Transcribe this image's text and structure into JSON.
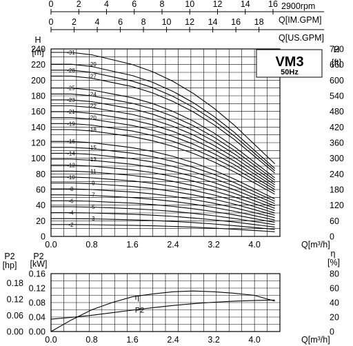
{
  "chart_data": [
    {
      "type": "line",
      "title": "VM3",
      "subtitle": "50Hz",
      "speed_label": "2900rpm",
      "x_units": {
        "m3h": "Q[m³/h]",
        "us": "Q[US.GPM]",
        "imp": "Q[IM.GPM]"
      },
      "y_units": {
        "left_name": "H",
        "left_unit": "[m]",
        "right_name": "H",
        "right_unit": "[ft]"
      },
      "xlim": [
        0,
        4.5
      ],
      "ylim": [
        0,
        240
      ],
      "x_ticks": [
        "0.0",
        "0.8",
        "1.6",
        "2.4",
        "3.2",
        "4.0"
      ],
      "y_ticks": [
        "0",
        "20",
        "40",
        "60",
        "80",
        "100",
        "120",
        "140",
        "160",
        "180",
        "200",
        "220",
        "240"
      ],
      "ft_ticks": [
        "0",
        "60",
        "120",
        "180",
        "240",
        "300",
        "360",
        "420",
        "480",
        "540",
        "600",
        "660",
        "720"
      ],
      "us_ticks": [
        "0",
        "2",
        "4",
        "6",
        "8",
        "10",
        "12",
        "14",
        "16",
        "18"
      ],
      "imp_ticks": [
        "0",
        "2",
        "4",
        "6",
        "8",
        "10",
        "12",
        "14",
        "16"
      ],
      "stages": [
        "2",
        "3",
        "4",
        "5",
        "6",
        "7",
        "8",
        "9",
        "10",
        "11",
        "12",
        "13",
        "14",
        "15",
        "16",
        "18",
        "19",
        "20",
        "21",
        "22",
        "23",
        "24",
        "25",
        "27",
        "28",
        "29",
        "31"
      ],
      "head_per_stage_m": [
        7.6,
        7.6,
        7.5,
        7.3,
        7.1,
        6.8,
        6.4,
        5.9,
        5.3,
        4.6,
        3.8,
        3.0
      ],
      "x": [
        0.0,
        0.4,
        0.8,
        1.2,
        1.6,
        2.0,
        2.4,
        2.8,
        3.2,
        3.6,
        4.0,
        4.4
      ]
    },
    {
      "type": "line",
      "xlim": [
        0,
        4.5
      ],
      "ylim": [
        0,
        0.16
      ],
      "units": {
        "p2_left_name": "P2",
        "p2_left_unit": "[hp]",
        "p2_name": "P2",
        "p2_unit": "[kW]",
        "eta_name": "η",
        "eta_unit": "[%]",
        "x": "Q[m³/h]"
      },
      "x_ticks": [
        "0.0",
        "0.8",
        "1.6",
        "2.4",
        "3.2",
        "4.0"
      ],
      "kw_ticks": [
        "0.00",
        "0.04",
        "0.08",
        "0.12",
        "0.16"
      ],
      "hp_ticks": [
        "0.00",
        "0.06",
        "0.12",
        "0.18"
      ],
      "eta_ticks": [
        "0",
        "20",
        "40",
        "60",
        "80"
      ],
      "series": [
        {
          "name": "η",
          "x": [
            0.0,
            0.4,
            0.8,
            1.2,
            1.6,
            2.0,
            2.4,
            2.8,
            3.2,
            3.6,
            4.0,
            4.4
          ],
          "values": [
            0,
            16,
            30,
            40,
            48,
            52,
            55,
            56,
            55,
            53,
            50,
            42
          ]
        },
        {
          "name": "P2",
          "x": [
            0.0,
            0.4,
            0.8,
            1.2,
            1.6,
            2.0,
            2.4,
            2.8,
            3.2,
            3.6,
            4.0,
            4.4
          ],
          "values": [
            0.034,
            0.039,
            0.045,
            0.052,
            0.059,
            0.066,
            0.072,
            0.077,
            0.081,
            0.084,
            0.086,
            0.087
          ]
        }
      ]
    }
  ]
}
